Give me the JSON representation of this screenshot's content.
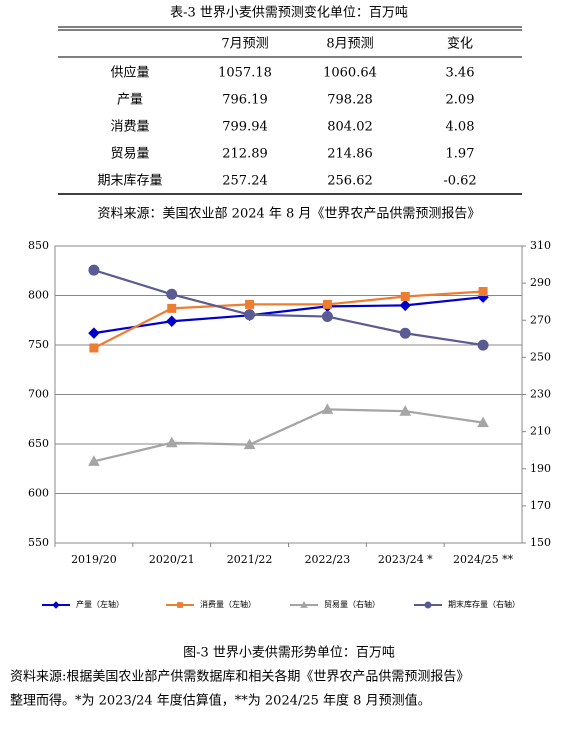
{
  "table": {
    "title": "表-3 世界小麦供需预测变化单位：百万吨",
    "header": [
      "7月预测",
      "8月预测",
      "变化"
    ],
    "rows": [
      [
        "供应量",
        "1057.18",
        "1060.64",
        "3.46"
      ],
      [
        "产量",
        "796.19",
        "798.28",
        "2.09"
      ],
      [
        "消费量",
        "799.94",
        "804.02",
        "4.08"
      ],
      [
        "贸易量",
        "212.89",
        "214.86",
        "1.97"
      ],
      [
        "期末库存量",
        "257.24",
        "256.62",
        "-0.62"
      ]
    ]
  },
  "table_source": "资料来源：美国农业部 2024 年 8 月《世界农产品供需预测报告》",
  "chart_data": {
    "type": "line",
    "categories": [
      "2019/20",
      "2020/21",
      "2021/22",
      "2022/23",
      "2023/24 *",
      "2024/25 **"
    ],
    "ylim": [
      550,
      850
    ],
    "yticks": [
      550,
      600,
      650,
      700,
      750,
      800,
      850
    ],
    "y2lim": [
      150,
      310
    ],
    "y2ticks": [
      150,
      170,
      190,
      210,
      230,
      250,
      270,
      290,
      310
    ],
    "grid": true,
    "series": [
      {
        "name": "产量（左轴）",
        "color": "#0000cc",
        "marker": "diamond",
        "values": [
          762,
          774,
          780,
          789,
          790,
          798.28
        ]
      },
      {
        "name": "消费量（左轴）",
        "color": "#ed7d31",
        "marker": "square",
        "values": [
          747,
          787,
          791,
          791,
          799,
          804.02
        ]
      },
      {
        "name": "贸易量（右轴）",
        "color": "#a5a5a5",
        "marker": "triangle",
        "axis": "y2",
        "values": [
          194,
          204,
          203,
          222,
          221,
          214.86
        ]
      },
      {
        "name": "期末库存量（右轴）",
        "color": "#5b5b94",
        "marker": "circle",
        "axis": "y2",
        "values": [
          297,
          284,
          273,
          272,
          263,
          256.62
        ]
      }
    ]
  },
  "figure_caption": "图-3 世界小麦供需形势单位：百万吨",
  "figure_note": [
    "资料来源:根据美国农业部产供需数据库和相关各期《世界农产品供需预测报告》",
    "整理而得。*为 2023/24 年度估算值，**为 2024/25 年度 8 月预测值。"
  ]
}
